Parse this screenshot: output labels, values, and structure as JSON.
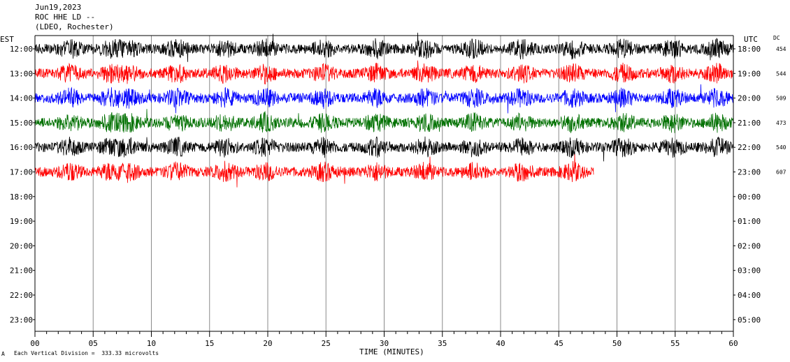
{
  "header": {
    "date": "Jun19,2023",
    "station": "ROC HHE LD --",
    "location": "(LDEO, Rochester)"
  },
  "axis_labels": {
    "left_timezone": "EST",
    "right_timezone": "UTC",
    "dc_label": "DC",
    "xlabel": "TIME (MINUTES)"
  },
  "footer": {
    "marker": "A",
    "division_note": "Each Vertical Division =  333.33 microvolts"
  },
  "chart_data": {
    "type": "line",
    "title": "",
    "xlabel": "TIME (MINUTES)",
    "ylabel": "",
    "xlim": [
      0,
      60
    ],
    "x_ticks": [
      "00",
      "05",
      "10",
      "15",
      "20",
      "25",
      "30",
      "35",
      "40",
      "45",
      "50",
      "55",
      "60"
    ],
    "est_hours": [
      "12:00",
      "13:00",
      "14:00",
      "15:00",
      "16:00",
      "17:00",
      "18:00",
      "19:00",
      "20:00",
      "21:00",
      "22:00",
      "23:00"
    ],
    "utc_hours": [
      "18:00",
      "19:00",
      "20:00",
      "21:00",
      "22:00",
      "23:00",
      "00:00",
      "01:00",
      "02:00",
      "03:00",
      "04:00",
      "05:00"
    ],
    "grid": true,
    "series": [
      {
        "hour_est": "12:00",
        "dc": "454",
        "color": "#000000",
        "duration_min": 60
      },
      {
        "hour_est": "13:00",
        "dc": "544",
        "color": "#ff0000",
        "duration_min": 60
      },
      {
        "hour_est": "14:00",
        "dc": "509",
        "color": "#0000ff",
        "duration_min": 60
      },
      {
        "hour_est": "15:00",
        "dc": "473",
        "color": "#007000",
        "duration_min": 60
      },
      {
        "hour_est": "16:00",
        "dc": "540",
        "color": "#000000",
        "duration_min": 60
      },
      {
        "hour_est": "17:00",
        "dc": "607",
        "color": "#ff0000",
        "duration_min": 48
      }
    ]
  }
}
